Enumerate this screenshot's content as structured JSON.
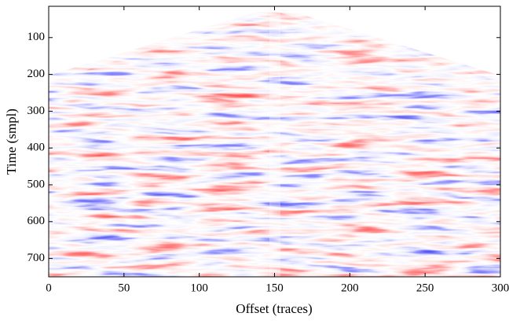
{
  "chart_data": {
    "type": "image",
    "xlabel": "Offset (traces)",
    "ylabel": "Time (smpl)",
    "xlim": [
      0,
      300
    ],
    "xticks": [
      0,
      50,
      100,
      150,
      200,
      250,
      300
    ],
    "ylim": [
      750,
      15
    ],
    "yticks": [
      100,
      200,
      300,
      400,
      500,
      600,
      700
    ],
    "colormap": "seismic"
  }
}
